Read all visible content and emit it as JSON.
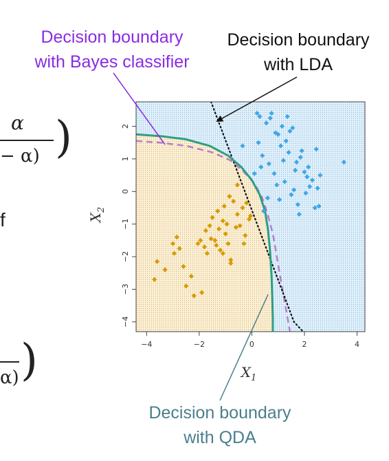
{
  "annotations": {
    "bayes": [
      "Decision boundary",
      "with Bayes classifier"
    ],
    "lda": [
      "Decision boundary",
      "with LDA"
    ],
    "qda": [
      "Decision boundary",
      "with QDA"
    ]
  },
  "fragments": {
    "alpha_top": "α",
    "one_minus_alpha": "− α)",
    "letter_f": "f",
    "alpha_bottom": "α)"
  },
  "colors": {
    "class_orange": "#d99a00",
    "class_blue": "#3fa7e8",
    "bayes_boundary": "#b67cc9",
    "lda_boundary": "#111111",
    "qda_boundary": "#2e9e86",
    "bayes_annotation": "#8a2be2",
    "qda_annotation": "#4a7f8c"
  },
  "chart_data": {
    "type": "scatter",
    "xlabel": "X",
    "xlabel_sub": "1",
    "ylabel": "X",
    "ylabel_sub": "2",
    "xlim": [
      -4.4,
      4.3
    ],
    "ylim": [
      -4.3,
      2.75
    ],
    "xticks": [
      -4,
      -2,
      0,
      2,
      4
    ],
    "yticks": [
      -4,
      -3,
      -2,
      -1,
      0,
      1,
      2
    ],
    "grid": false,
    "background_regions": [
      {
        "class": "orange",
        "color": "#f6e6c0"
      },
      {
        "class": "blue",
        "color": "#cfe6f4"
      }
    ],
    "series": [
      {
        "class": "orange",
        "marker": "diamond",
        "x": [
          -3.7,
          -3.3,
          -3.0,
          -2.85,
          -2.95,
          -2.75,
          -2.6,
          -2.2,
          -2.05,
          -1.9,
          -1.75,
          -1.6,
          -1.5,
          -1.4,
          -1.3,
          -1.2,
          -1.1,
          -1.0,
          -0.9,
          -0.8,
          -0.7,
          -0.55,
          -0.45,
          -0.35,
          -0.25,
          -0.1,
          -0.8,
          -1.7,
          -1.55,
          -1.35,
          -1.05,
          -0.85,
          -0.6,
          -0.3,
          -1.1,
          -2.3,
          -1.95,
          -1.25,
          -0.2,
          -0.05,
          -3.6,
          -2.5,
          -1.8,
          -0.95,
          -0.55
        ],
        "y": [
          -2.7,
          -2.4,
          -1.6,
          -1.4,
          -1.9,
          -1.75,
          -2.3,
          -3.2,
          -1.6,
          -3.1,
          -1.2,
          -1.05,
          -0.8,
          -1.5,
          -0.6,
          -1.8,
          -0.9,
          -1.3,
          -1.6,
          -2.2,
          -0.3,
          -0.7,
          -1.05,
          -0.5,
          -1.35,
          -0.85,
          -2.1,
          -1.9,
          -1.45,
          -1.65,
          -0.45,
          -0.15,
          -1.1,
          -1.6,
          -1.9,
          -2.6,
          -1.5,
          -1.15,
          -0.35,
          -0.75,
          -2.15,
          -2.9,
          -1.7,
          -1.0,
          0.2
        ]
      },
      {
        "class": "blue",
        "marker": "diamond",
        "x": [
          0.2,
          0.3,
          0.55,
          0.7,
          0.9,
          1.0,
          1.1,
          1.3,
          1.4,
          1.55,
          1.7,
          1.85,
          2.0,
          2.15,
          2.3,
          2.5,
          2.6,
          0.4,
          0.65,
          0.85,
          1.25,
          1.5,
          1.75,
          2.05,
          2.4,
          3.5,
          0.25,
          0.95,
          1.2,
          1.65,
          1.9,
          2.2,
          -0.35,
          1.05,
          0.45,
          1.35,
          0.75,
          1.6,
          0.1,
          2.45,
          0.6,
          1.15,
          2.1,
          0.35,
          1.45,
          1.8,
          2.55
        ],
        "y": [
          2.4,
          2.3,
          2.1,
          2.25,
          1.8,
          1.75,
          1.4,
          1.55,
          1.2,
          1.95,
          0.9,
          1.05,
          0.6,
          0.75,
          0.35,
          0.1,
          0.5,
          1.1,
          0.85,
          0.55,
          0.3,
          -0.1,
          -0.4,
          -0.05,
          -0.5,
          0.9,
          1.5,
          0.2,
          0.95,
          0.65,
          1.25,
          0.15,
          1.4,
          -0.25,
          -0.6,
          2.3,
          2.4,
          0.05,
          0.55,
          1.3,
          -0.2,
          2.0,
          0.45,
          0.75,
          1.85,
          -0.7,
          -0.45
        ]
      }
    ],
    "boundaries": [
      {
        "name": "Bayes",
        "style": "dashed",
        "x": [
          -4.4,
          -3.5,
          -2.5,
          -1.5,
          -0.8,
          -0.3,
          0.1,
          0.4,
          0.6,
          0.8,
          0.95,
          1.1,
          1.25,
          1.45
        ],
        "y": [
          1.55,
          1.5,
          1.4,
          1.2,
          0.95,
          0.6,
          0.25,
          -0.2,
          -0.7,
          -1.3,
          -2.0,
          -2.7,
          -3.4,
          -4.3
        ]
      },
      {
        "name": "LDA",
        "style": "dotted",
        "x": [
          -1.55,
          -1.2,
          -0.85,
          -0.5,
          -0.15,
          0.2,
          0.55,
          0.9,
          1.25,
          1.6,
          1.95
        ],
        "y": [
          2.75,
          2.0,
          1.25,
          0.5,
          -0.25,
          -1.0,
          -1.75,
          -2.5,
          -3.25,
          -4.0,
          -4.3
        ]
      },
      {
        "name": "QDA",
        "style": "solid",
        "x": [
          -4.4,
          -3.5,
          -2.5,
          -1.6,
          -0.9,
          -0.4,
          0.0,
          0.3,
          0.5,
          0.62,
          0.7,
          0.75,
          0.78,
          0.8,
          0.8
        ],
        "y": [
          1.75,
          1.7,
          1.6,
          1.4,
          1.1,
          0.75,
          0.35,
          -0.1,
          -0.6,
          -1.2,
          -1.9,
          -2.6,
          -3.3,
          -3.9,
          -4.3
        ]
      }
    ]
  }
}
